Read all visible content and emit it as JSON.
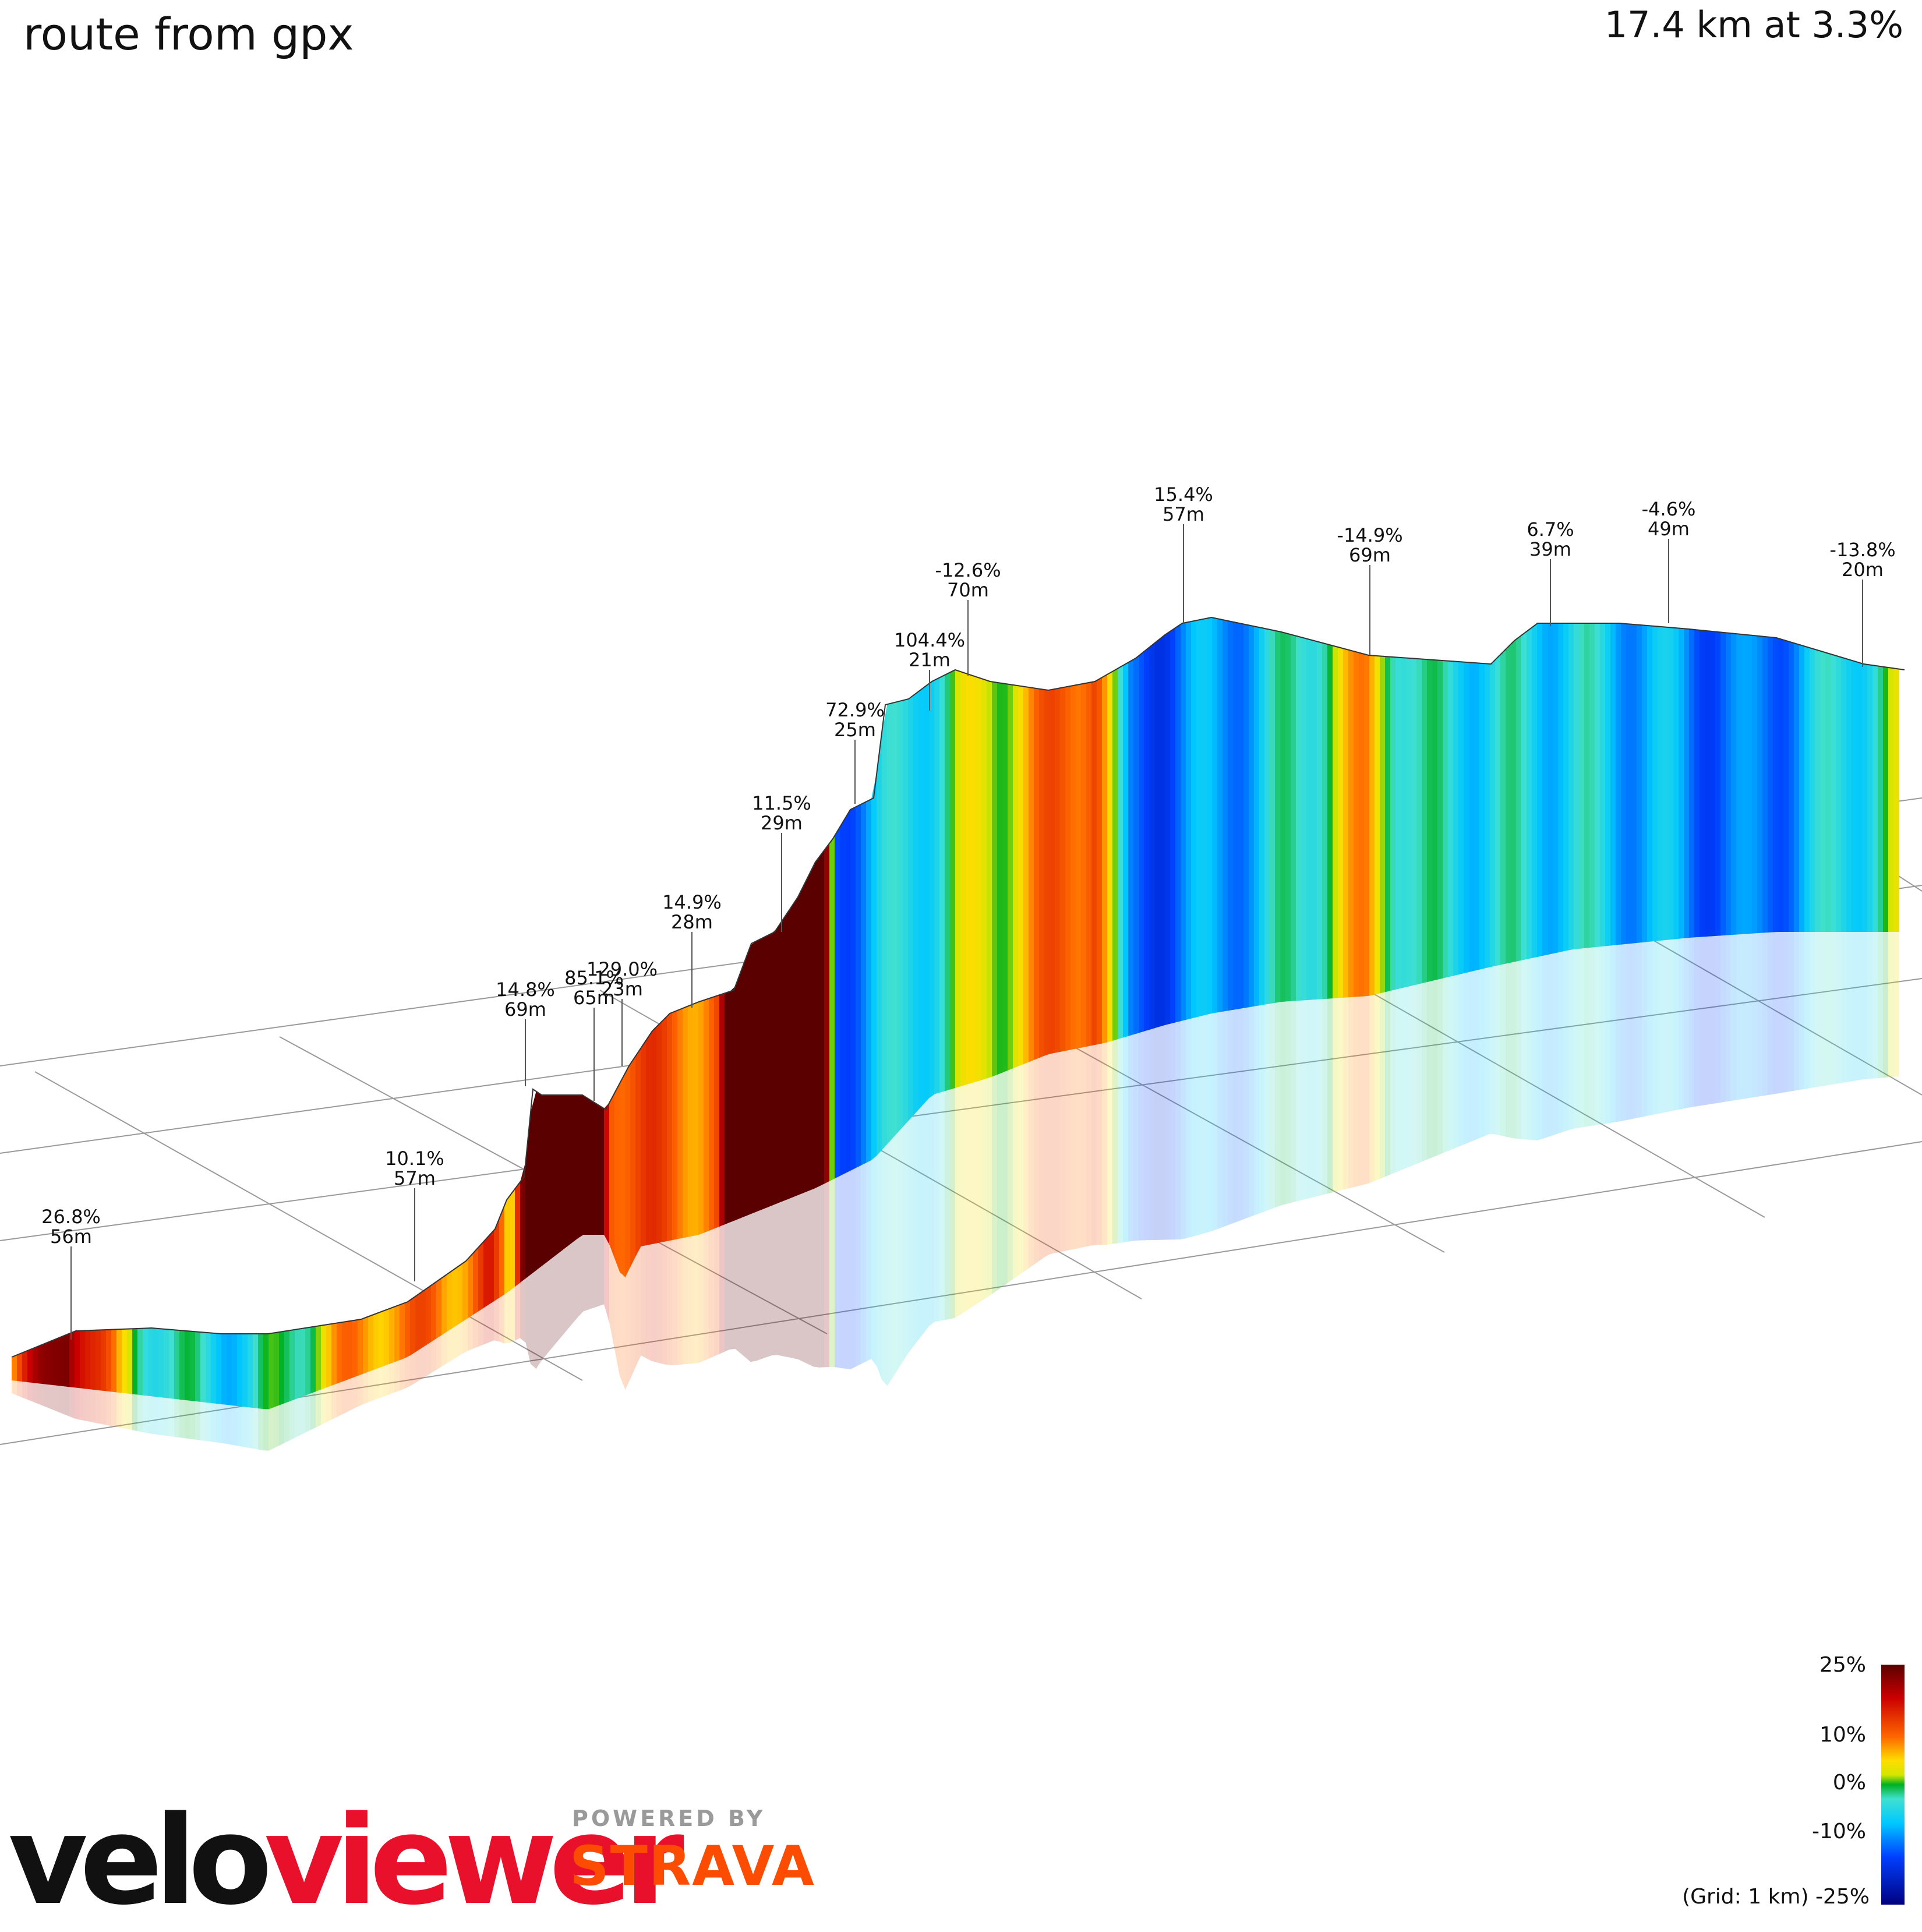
{
  "header": {
    "title": "route from gpx",
    "summary": "17.4 km at 3.3%"
  },
  "legend": {
    "labels": [
      "25%",
      "10%",
      "0%",
      "-10%",
      "(Grid: 1 km) -25%"
    ],
    "gradient_stops": [
      {
        "pct": 25,
        "color": "#5a0000"
      },
      {
        "pct": 18,
        "color": "#cc0000"
      },
      {
        "pct": 10,
        "color": "#ff6600"
      },
      {
        "pct": 5,
        "color": "#ffdd00"
      },
      {
        "pct": 2,
        "color": "#d4e600"
      },
      {
        "pct": 0,
        "color": "#00b020"
      },
      {
        "pct": -3,
        "color": "#40e0d0"
      },
      {
        "pct": -8,
        "color": "#00c8ff"
      },
      {
        "pct": -15,
        "color": "#0040ff"
      },
      {
        "pct": -25,
        "color": "#000080"
      }
    ]
  },
  "branding": {
    "logo_part1": "velo",
    "logo_part2": "viewer",
    "powered_by": "POWERED BY",
    "partner": "STRAVA"
  },
  "chart_data": {
    "type": "area",
    "title": "route from gpx",
    "subtitle": "17.4 km at 3.3%",
    "x_unit": "km",
    "distance_km": 17.4,
    "avg_gradient_pct": 3.3,
    "grid_km": 1,
    "color_scale_pct": [
      -25,
      25
    ],
    "profile": [
      {
        "km": 0.0,
        "pct": 8.0
      },
      {
        "km": 0.5,
        "pct": 26.8
      },
      {
        "km": 1.0,
        "pct": 3.0
      },
      {
        "km": 1.5,
        "pct": -4.0
      },
      {
        "km": 2.2,
        "pct": -6.0
      },
      {
        "km": 3.0,
        "pct": 6.0
      },
      {
        "km": 3.5,
        "pct": 10.1
      },
      {
        "km": 4.0,
        "pct": 8.0
      },
      {
        "km": 4.4,
        "pct": 14.8
      },
      {
        "km": 4.6,
        "pct": 0.0
      },
      {
        "km": 5.0,
        "pct": 85.1
      },
      {
        "km": 5.2,
        "pct": 129.0
      },
      {
        "km": 5.5,
        "pct": 14.9
      },
      {
        "km": 6.0,
        "pct": 10.0
      },
      {
        "km": 6.5,
        "pct": 11.5
      },
      {
        "km": 7.0,
        "pct": 72.9
      },
      {
        "km": 7.3,
        "pct": 104.4
      },
      {
        "km": 7.6,
        "pct": -12.6
      },
      {
        "km": 8.3,
        "pct": -5.0
      },
      {
        "km": 9.5,
        "pct": 8.0
      },
      {
        "km": 10.0,
        "pct": 15.4
      },
      {
        "km": 10.3,
        "pct": -14.9
      },
      {
        "km": 11.5,
        "pct": -8.0
      },
      {
        "km": 12.5,
        "pct": 6.7
      },
      {
        "km": 13.0,
        "pct": -4.6
      },
      {
        "km": 14.5,
        "pct": -6.0
      },
      {
        "km": 16.0,
        "pct": -13.8
      },
      {
        "km": 17.4,
        "pct": 0.0
      }
    ],
    "annotations": [
      {
        "pct_label": "26.8%",
        "len_label": "56m"
      },
      {
        "pct_label": "10.1%",
        "len_label": "57m"
      },
      {
        "pct_label": "14.8%",
        "len_label": "69m"
      },
      {
        "pct_label": "85.1%",
        "len_label": "65m"
      },
      {
        "pct_label": "129.0%",
        "len_label": "23m"
      },
      {
        "pct_label": "14.9%",
        "len_label": "28m"
      },
      {
        "pct_label": "11.5%",
        "len_label": "29m"
      },
      {
        "pct_label": "72.9%",
        "len_label": "25m"
      },
      {
        "pct_label": "104.4%",
        "len_label": "21m"
      },
      {
        "pct_label": "-12.6%",
        "len_label": "70m"
      },
      {
        "pct_label": "15.4%",
        "len_label": "57m"
      },
      {
        "pct_label": "-14.9%",
        "len_label": "69m"
      },
      {
        "pct_label": "6.7%",
        "len_label": "39m"
      },
      {
        "pct_label": "-4.6%",
        "len_label": "49m"
      },
      {
        "pct_label": "-13.8%",
        "len_label": "20m"
      }
    ]
  }
}
